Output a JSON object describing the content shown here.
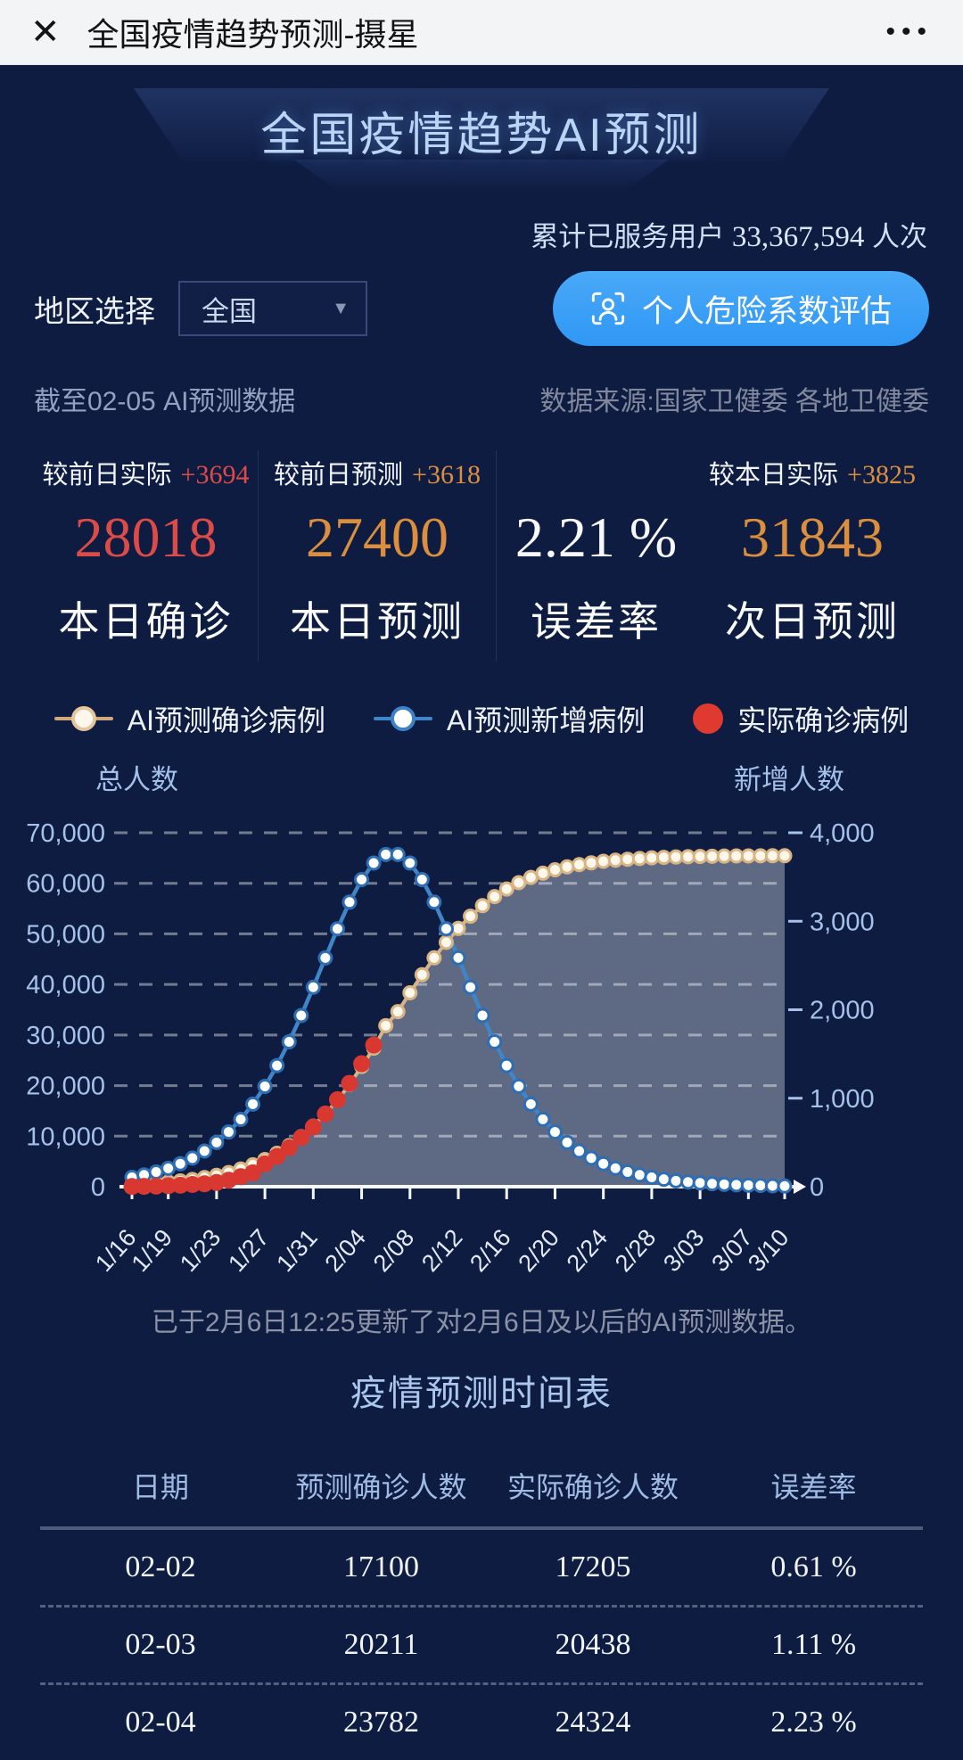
{
  "colors": {
    "background": "#0e1c41",
    "accent_blue": "#3fa0f6",
    "stat_red": "#dc4b47",
    "stat_orange": "#db8f3e",
    "cream_series": "#d7b38a",
    "blue_series": "#3f85c8",
    "red_series": "#d8382f",
    "axis_text": "#a6c2ea"
  },
  "titlebar": {
    "close_icon": "✕",
    "title": "全国疫情趋势预测-摄星",
    "menu_icon": "•••"
  },
  "header": {
    "title": "全国疫情趋势AI预测",
    "served_label": "累计已服务用户",
    "served_count": "33,367,594",
    "served_unit": "人次"
  },
  "controls": {
    "region_label": "地区选择",
    "region_value": "全国",
    "caret_icon": "▼",
    "assess_button_label": "个人危险系数评估"
  },
  "meta": {
    "cutoff_text": "截至02-05 AI预测数据",
    "source_text": "数据来源:国家卫健委 各地卫健委"
  },
  "stats": {
    "cards": [
      {
        "top_label": "较前日实际",
        "top_delta": "+3694",
        "value": "28018",
        "caption": "本日确诊"
      },
      {
        "top_label": "较前日预测",
        "top_delta": "+3618",
        "value": "27400",
        "caption": "本日预测"
      },
      {
        "top_label": "",
        "top_delta": "",
        "value": "2.21 %",
        "caption": "误差率"
      },
      {
        "top_label": "较本日实际",
        "top_delta": "+3825",
        "value": "31843",
        "caption": "次日预测"
      }
    ]
  },
  "legend": [
    {
      "label": "AI预测确诊病例"
    },
    {
      "label": "AI预测新增病例"
    },
    {
      "label": "实际确诊病例"
    }
  ],
  "chart_data": {
    "type": "line",
    "title": "全国疫情趋势AI预测",
    "y_left_label": "总人数",
    "y_right_label": "新增人数",
    "y_left_max": 70000,
    "y_right_max": 4000,
    "y_left_ticks": [
      "0",
      "10,000",
      "20,000",
      "30,000",
      "40,000",
      "50,000",
      "60,000",
      "70,000"
    ],
    "y_right_ticks": [
      "0",
      "1,000",
      "2,000",
      "3,000",
      "4,000"
    ],
    "grid": "dashed",
    "legend_position": "top",
    "x": [
      "1/16",
      "1/17",
      "1/18",
      "1/19",
      "1/20",
      "1/21",
      "1/22",
      "1/23",
      "1/24",
      "1/25",
      "1/26",
      "1/27",
      "1/28",
      "1/29",
      "1/30",
      "1/31",
      "2/01",
      "2/02",
      "2/03",
      "2/04",
      "2/05",
      "2/06",
      "2/07",
      "2/08",
      "2/09",
      "2/10",
      "2/11",
      "2/12",
      "2/13",
      "2/14",
      "2/15",
      "2/16",
      "2/17",
      "2/18",
      "2/19",
      "2/20",
      "2/21",
      "2/22",
      "2/23",
      "2/24",
      "2/25",
      "2/26",
      "2/27",
      "2/28",
      "2/29",
      "3/01",
      "3/02",
      "3/03",
      "3/04",
      "3/05",
      "3/06",
      "3/07",
      "3/08",
      "3/09",
      "3/10"
    ],
    "x_tick_indices": [
      0,
      3,
      7,
      11,
      15,
      19,
      23,
      27,
      31,
      35,
      39,
      43,
      47,
      51,
      54
    ],
    "series": [
      {
        "name": "AI预测确诊病例",
        "axis": "left",
        "style": "cream-line-dots",
        "area": true,
        "values": [
          463,
          582,
          730,
          917,
          1149,
          1440,
          1803,
          2252,
          2810,
          3497,
          4343,
          5373,
          6623,
          8127,
          9908,
          11996,
          14418,
          17100,
          20211,
          23782,
          27400,
          31843,
          34632,
          38348,
          41913,
          45260,
          48330,
          51080,
          53500,
          55590,
          57375,
          58877,
          60125,
          61155,
          62000,
          62690,
          63250,
          63700,
          64060,
          64350,
          64580,
          64765,
          64917,
          65037,
          65132,
          65207,
          65267,
          65315,
          65352,
          65383,
          65407,
          65426,
          65441,
          65453,
          65463
        ]
      },
      {
        "name": "AI预测新增病例",
        "axis": "right",
        "style": "blue-line-dots",
        "values": [
          106,
          133,
          166,
          208,
          260,
          324,
          403,
          500,
          619,
          761,
          933,
          1134,
          1369,
          1637,
          1934,
          2254,
          2586,
          2914,
          3216,
          3471,
          3657,
          3754,
          3754,
          3657,
          3471,
          3217,
          2914,
          2587,
          2254,
          1934,
          1637,
          1369,
          1135,
          933,
          762,
          619,
          500,
          403,
          324,
          260,
          209,
          167,
          133,
          106,
          84,
          67,
          53,
          43,
          34,
          27,
          21,
          17,
          14,
          10,
          8
        ]
      },
      {
        "name": "实际确诊病例",
        "axis": "left",
        "style": "red-dots",
        "values": [
          45,
          62,
          121,
          198,
          291,
          440,
          571,
          830,
          1287,
          1975,
          2744,
          4515,
          5974,
          7711,
          9692,
          11791,
          14380,
          17205,
          20438,
          24324,
          28018
        ]
      }
    ]
  },
  "note": "已于2月6日12:25更新了对2月6日及以后的AI预测数据。",
  "table": {
    "title": "疫情预测时间表",
    "headers": [
      "日期",
      "预测确诊人数",
      "实际确诊人数",
      "误差率"
    ],
    "rows": [
      [
        "02-02",
        "17100",
        "17205",
        "0.61 %"
      ],
      [
        "02-03",
        "20211",
        "20438",
        "1.11 %"
      ],
      [
        "02-04",
        "23782",
        "24324",
        "2.23 %"
      ]
    ]
  }
}
